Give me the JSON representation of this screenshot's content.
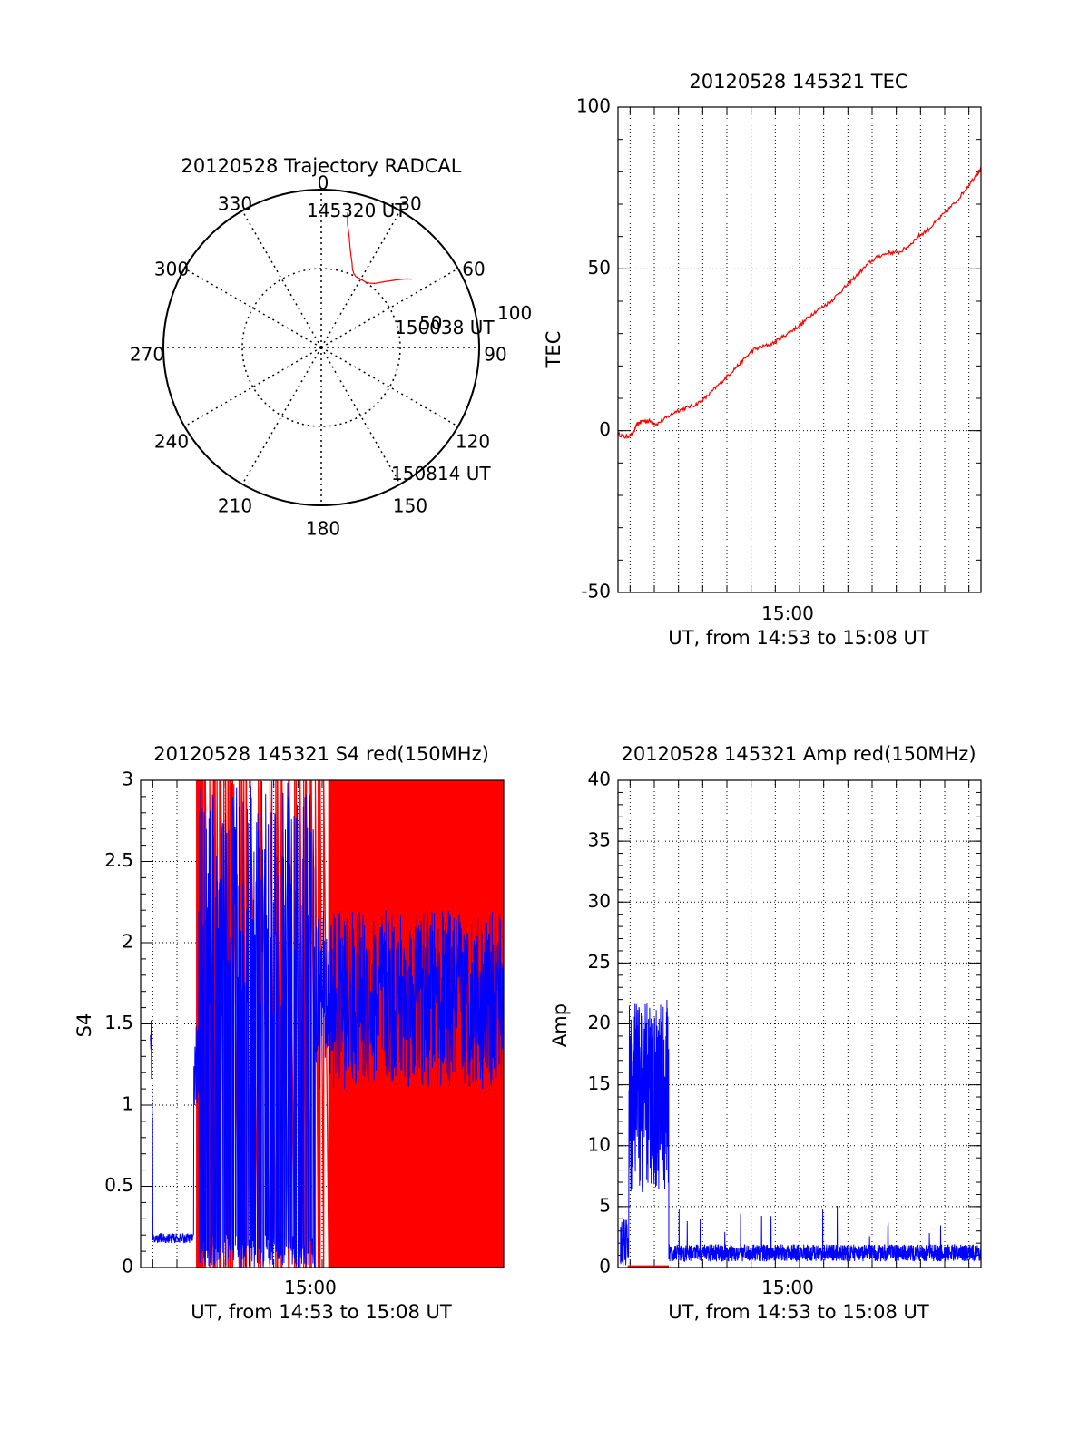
{
  "colors": {
    "red": "#ff0000",
    "blue": "#0000ff",
    "axis": "#000000",
    "grid": "#000000"
  },
  "chart_data": [
    {
      "type": "polar",
      "title": "20120528 Trajectory RADCAL",
      "azimuth_labels": [
        "0",
        "30",
        "60",
        "90",
        "120",
        "150",
        "180",
        "210",
        "240",
        "270",
        "300",
        "330"
      ],
      "elevation_labels": [
        "50",
        "100"
      ],
      "trajectory_labels": {
        "start": "145320 UT",
        "mid": "150038 UT",
        "end": "150814 UT"
      },
      "series": [
        {
          "color": "red",
          "points": [
            [
              11,
              87
            ],
            [
              12,
              80
            ],
            [
              14,
              73
            ],
            [
              16,
              66
            ],
            [
              18,
              61
            ],
            [
              20,
              57
            ],
            [
              22,
              53
            ],
            [
              24,
              51
            ],
            [
              26,
              50
            ],
            [
              28,
              50
            ],
            [
              31,
              50
            ],
            [
              34,
              50
            ],
            [
              37,
              51
            ],
            [
              40,
              53
            ],
            [
              44,
              58
            ],
            [
              48,
              64
            ],
            [
              51,
              69
            ],
            [
              53,
              72
            ]
          ]
        }
      ],
      "grid": true
    },
    {
      "type": "line",
      "title": "20120528 145321 TEC",
      "ylabel": "TEC",
      "xlabel": "UT, from 14:53 to 15:08 UT",
      "xtick_labels": [
        "15:00"
      ],
      "x_ticks": [
        7
      ],
      "ytick_labels": [
        "-50",
        "0",
        "50",
        "100"
      ],
      "y_ticks": [
        -50,
        0,
        50,
        100
      ],
      "xlim": [
        0,
        15
      ],
      "ylim": [
        -50,
        100
      ],
      "grid": true,
      "series": [
        {
          "color": "red",
          "x": [
            0,
            0.3,
            0.6,
            0.8,
            1,
            1.3,
            1.6,
            2,
            2.4,
            2.8,
            3.2,
            3.6,
            4,
            4.4,
            4.8,
            5.2,
            5.6,
            6,
            6.4,
            6.8,
            7.2,
            7.6,
            8,
            8.4,
            8.8,
            9.2,
            9.6,
            10,
            10.4,
            10.8,
            11.2,
            11.6,
            12,
            12.4,
            12.8,
            13.2,
            13.6,
            14,
            14.4,
            14.8,
            15
          ],
          "y": [
            -1,
            -2,
            -1,
            2,
            3,
            3,
            2,
            4,
            6,
            7,
            8,
            10,
            13,
            16,
            19,
            22,
            25,
            26,
            27,
            29,
            31,
            33,
            36,
            38,
            40,
            43,
            46,
            49,
            52,
            54,
            55,
            55,
            57,
            60,
            62,
            65,
            68,
            71,
            75,
            79,
            81
          ]
        }
      ]
    },
    {
      "type": "line",
      "title": "20120528 145321 S4 red(150MHz)",
      "ylabel": "S4",
      "xlabel": "UT, from 14:53 to 15:08 UT",
      "xtick_labels": [
        "15:00"
      ],
      "x_ticks": [
        7
      ],
      "ytick_labels": [
        "0",
        "0.5",
        "1",
        "1.5",
        "2",
        "2.5",
        "3"
      ],
      "y_ticks": [
        0,
        0.5,
        1,
        1.5,
        2,
        2.5,
        3
      ],
      "xlim": [
        0,
        15
      ],
      "ylim": [
        0,
        3
      ],
      "grid": true,
      "series": [
        {
          "color": "red",
          "x_start": 2.3,
          "x_end": 15,
          "value_range": [
            0,
            3
          ]
        },
        {
          "color": "blue",
          "x_start": 0.4,
          "x_end": 15,
          "baseline": 0.18,
          "value_range": [
            0.15,
            3
          ]
        }
      ]
    },
    {
      "type": "line",
      "title": "20120528 145321 Amp red(150MHz)",
      "ylabel": "Amp",
      "xlabel": "UT, from 14:53 to 15:08 UT",
      "xtick_labels": [
        "15:00"
      ],
      "x_ticks": [
        7
      ],
      "ytick_labels": [
        "0",
        "5",
        "10",
        "15",
        "20",
        "25",
        "30",
        "35",
        "40"
      ],
      "y_ticks": [
        0,
        5,
        10,
        15,
        20,
        25,
        30,
        35,
        40
      ],
      "xlim": [
        0,
        15
      ],
      "ylim": [
        0,
        40
      ],
      "grid": true,
      "series": [
        {
          "color": "blue",
          "segments": [
            {
              "x_start": 0.1,
              "x_end": 2.1,
              "range": [
                8,
                22
              ]
            },
            {
              "x_start": 2.1,
              "x_end": 15,
              "range": [
                0.5,
                2
              ]
            }
          ]
        },
        {
          "color": "red",
          "x_start": 0.4,
          "x_end": 2.1,
          "value": 0.1
        }
      ]
    }
  ]
}
